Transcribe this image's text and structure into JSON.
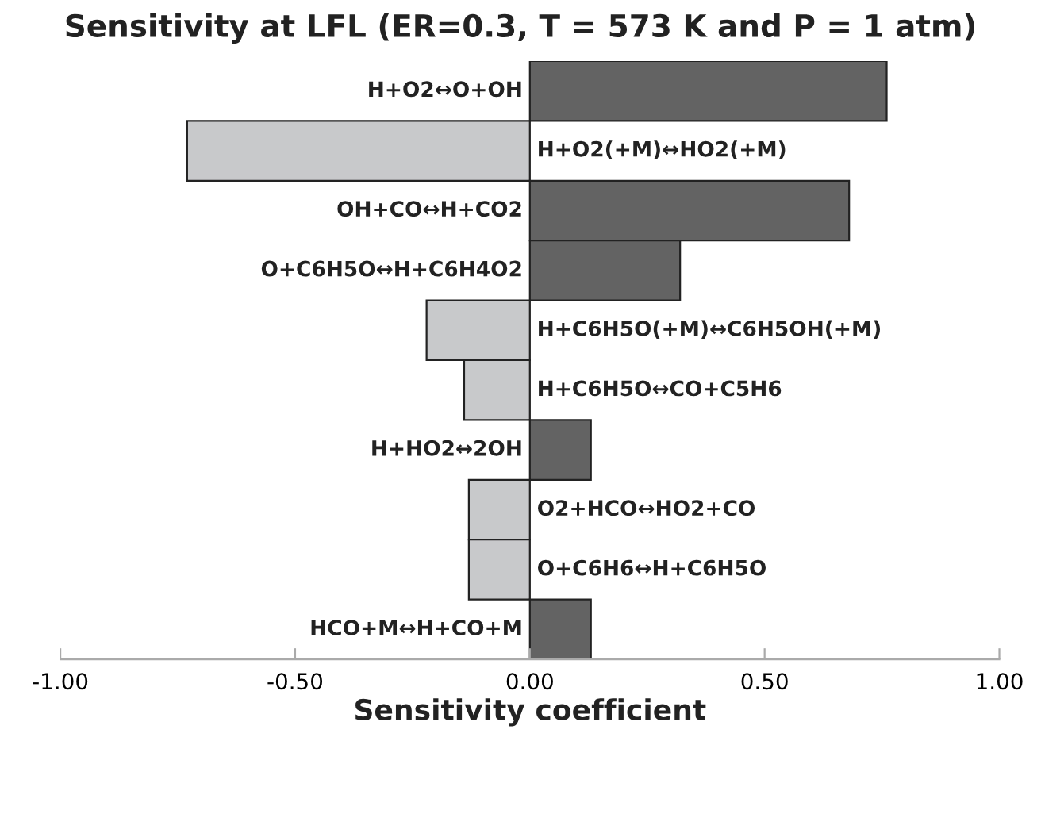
{
  "chart_data": {
    "type": "bar",
    "orientation": "horizontal",
    "title": "Sensitivity at LFL (ER=0.3, T = 573 K and P = 1 atm)",
    "xlabel": "Sensitivity coefficient",
    "categories": [
      "H+O2↔O+OH",
      "H+O2(+M)↔HO2(+M)",
      "OH+CO↔H+CO2",
      "O+C6H5O↔H+C6H4O2",
      "H+C6H5O(+M)↔C6H5OH(+M)",
      "H+C6H5O↔CO+C5H6",
      "H+HO2↔2OH",
      "O2+HCO↔HO2+CO",
      "O+C6H6↔H+C6H5O",
      "HCO+M↔H+CO+M"
    ],
    "values": [
      0.76,
      -0.73,
      0.68,
      0.32,
      -0.22,
      -0.14,
      0.13,
      -0.13,
      -0.13,
      0.13
    ],
    "colors": [
      "#636363",
      "#c8c9cb",
      "#636363",
      "#636363",
      "#c8c9cb",
      "#c8c9cb",
      "#636363",
      "#c8c9cb",
      "#c8c9cb",
      "#636363"
    ],
    "xlim": [
      -1,
      1
    ],
    "xticks": [
      {
        "value": -1,
        "label": "-1.00"
      },
      {
        "value": -0.5,
        "label": "-0.50"
      },
      {
        "value": 0,
        "label": "0.00"
      },
      {
        "value": 0.5,
        "label": "0.50"
      },
      {
        "value": 1,
        "label": "1.00"
      }
    ],
    "grid": false,
    "legend": false
  }
}
